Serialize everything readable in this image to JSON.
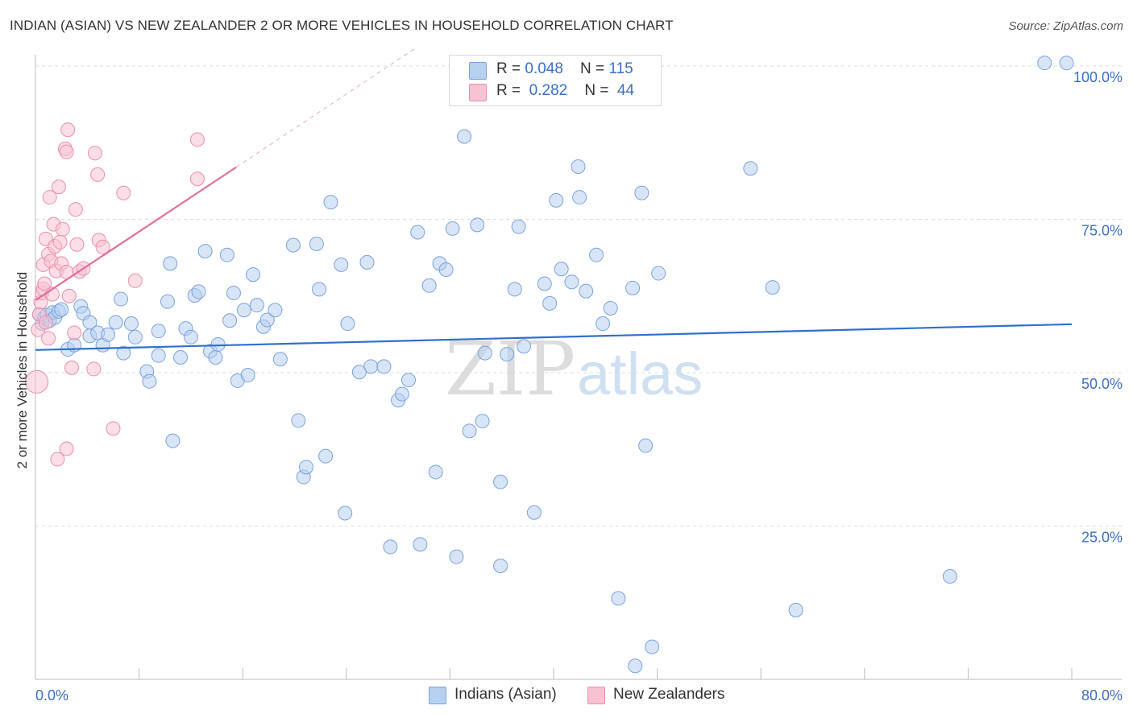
{
  "header": {
    "title": "INDIAN (ASIAN) VS NEW ZEALANDER 2 OR MORE VEHICLES IN HOUSEHOLD CORRELATION CHART",
    "source": "Source: ZipAtlas.com"
  },
  "legend": {
    "rows": [
      {
        "r_label": "R = ",
        "r_value": "0.048",
        "n_label": "N = ",
        "n_value": "115"
      },
      {
        "r_label": "R = ",
        "r_value": "0.282",
        "n_label": "N = ",
        "n_value": "44"
      }
    ]
  },
  "watermark": {
    "zip": "ZIP",
    "atlas": "atlas"
  },
  "colors": {
    "blue_fill": "#b8d0f0",
    "blue_stroke": "#7aa3dc",
    "blue_line": "#2f6fcf",
    "pink_fill": "#f7c3d2",
    "pink_stroke": "#e98fab",
    "pink_line": "#e0709a",
    "tick_text": "#3a6fc4",
    "grid": "#dddddd"
  },
  "chart_data": {
    "type": "scatter",
    "title": "INDIAN (ASIAN) VS NEW ZEALANDER 2 OR MORE VEHICLES IN HOUSEHOLD CORRELATION CHART",
    "xlabel": "",
    "ylabel": "2 or more Vehicles in Household",
    "xlim": [
      0,
      80
    ],
    "ylim": [
      0,
      100
    ],
    "x_tick_labels": [
      "0.0%",
      "80.0%"
    ],
    "y_ticks": [
      25,
      50,
      75,
      100
    ],
    "y_tick_labels": [
      "25.0%",
      "50.0%",
      "75.0%",
      "100.0%"
    ],
    "grid": true,
    "legend_position": "top-center",
    "series": [
      {
        "name": "Indians (Asian)",
        "color": "#b8d0f0",
        "r": 0.048,
        "n": 115,
        "trend": {
          "x": [
            0,
            80
          ],
          "y": [
            53.7,
            57.9
          ]
        },
        "points": [
          [
            0.3,
            59.5
          ],
          [
            0.5,
            58.0
          ],
          [
            0.7,
            59.0
          ],
          [
            0.9,
            59.4
          ],
          [
            1.1,
            58.5
          ],
          [
            1.3,
            59.8
          ],
          [
            1.5,
            59.0
          ],
          [
            1.8,
            60.0
          ],
          [
            2.0,
            60.3
          ],
          [
            2.5,
            53.8
          ],
          [
            3.0,
            54.5
          ],
          [
            3.5,
            60.8
          ],
          [
            3.7,
            59.7
          ],
          [
            4.2,
            58.2
          ],
          [
            4.2,
            56.0
          ],
          [
            4.8,
            56.5
          ],
          [
            5.2,
            54.5
          ],
          [
            5.6,
            56.2
          ],
          [
            6.2,
            58.2
          ],
          [
            6.6,
            62.0
          ],
          [
            6.8,
            53.2
          ],
          [
            7.4,
            58.0
          ],
          [
            7.7,
            55.8
          ],
          [
            8.6,
            50.2
          ],
          [
            8.8,
            48.6
          ],
          [
            9.5,
            56.8
          ],
          [
            9.5,
            52.8
          ],
          [
            10.2,
            61.6
          ],
          [
            10.4,
            67.8
          ],
          [
            10.6,
            38.9
          ],
          [
            11.2,
            52.5
          ],
          [
            11.6,
            57.2
          ],
          [
            12.0,
            55.8
          ],
          [
            12.3,
            62.6
          ],
          [
            12.6,
            63.2
          ],
          [
            13.1,
            69.8
          ],
          [
            13.5,
            53.5
          ],
          [
            13.9,
            52.5
          ],
          [
            14.1,
            54.6
          ],
          [
            14.8,
            69.2
          ],
          [
            15.0,
            58.5
          ],
          [
            15.3,
            63.0
          ],
          [
            15.6,
            48.7
          ],
          [
            16.1,
            60.2
          ],
          [
            16.4,
            49.6
          ],
          [
            16.8,
            66.0
          ],
          [
            17.1,
            61.0
          ],
          [
            17.6,
            57.5
          ],
          [
            17.9,
            58.6
          ],
          [
            18.5,
            60.2
          ],
          [
            18.9,
            52.2
          ],
          [
            19.9,
            70.8
          ],
          [
            20.3,
            42.2
          ],
          [
            20.7,
            33.0
          ],
          [
            20.9,
            34.6
          ],
          [
            21.7,
            71.0
          ],
          [
            21.9,
            63.6
          ],
          [
            22.4,
            36.4
          ],
          [
            22.8,
            77.8
          ],
          [
            23.6,
            67.6
          ],
          [
            23.9,
            27.1
          ],
          [
            24.1,
            58.0
          ],
          [
            25.0,
            50.1
          ],
          [
            25.6,
            68.0
          ],
          [
            25.9,
            51.0
          ],
          [
            26.9,
            51.0
          ],
          [
            27.4,
            21.6
          ],
          [
            28.0,
            45.5
          ],
          [
            28.3,
            46.5
          ],
          [
            28.8,
            48.8
          ],
          [
            29.5,
            72.9
          ],
          [
            29.7,
            22.0
          ],
          [
            30.4,
            64.2
          ],
          [
            30.9,
            33.8
          ],
          [
            31.2,
            67.8
          ],
          [
            31.7,
            66.8
          ],
          [
            32.2,
            73.5
          ],
          [
            32.5,
            20.0
          ],
          [
            33.1,
            88.5
          ],
          [
            33.5,
            40.5
          ],
          [
            34.1,
            74.1
          ],
          [
            34.5,
            42.1
          ],
          [
            34.7,
            53.2
          ],
          [
            35.9,
            32.2
          ],
          [
            35.9,
            18.5
          ],
          [
            36.4,
            53.0
          ],
          [
            37.0,
            63.6
          ],
          [
            37.3,
            73.8
          ],
          [
            37.7,
            54.3
          ],
          [
            38.5,
            27.2
          ],
          [
            39.3,
            64.5
          ],
          [
            39.7,
            61.3
          ],
          [
            40.2,
            78.1
          ],
          [
            40.6,
            66.9
          ],
          [
            41.4,
            64.8
          ],
          [
            41.9,
            83.6
          ],
          [
            42.0,
            78.6
          ],
          [
            42.5,
            63.3
          ],
          [
            43.3,
            69.2
          ],
          [
            43.8,
            58.0
          ],
          [
            44.4,
            60.5
          ],
          [
            45.0,
            13.2
          ],
          [
            46.1,
            63.8
          ],
          [
            46.3,
            2.2
          ],
          [
            46.8,
            79.3
          ],
          [
            47.1,
            38.1
          ],
          [
            47.6,
            5.3
          ],
          [
            48.1,
            66.2
          ],
          [
            55.2,
            83.3
          ],
          [
            56.9,
            63.9
          ],
          [
            58.7,
            11.3
          ],
          [
            70.6,
            16.8
          ],
          [
            77.9,
            100.5
          ],
          [
            79.6,
            100.5
          ]
        ]
      },
      {
        "name": "New Zealanders",
        "color": "#f7c3d2",
        "r": 0.282,
        "n": 44,
        "trend": {
          "x": [
            0,
            15.5
          ],
          "y": [
            61.8,
            83.5
          ]
        },
        "trend_dashed": {
          "x": [
            15.5,
            29.4
          ],
          "y": [
            83.5,
            103.0
          ]
        },
        "points": [
          [
            0.1,
            48.5
          ],
          [
            0.2,
            57.0
          ],
          [
            0.3,
            59.5
          ],
          [
            0.4,
            61.5
          ],
          [
            0.5,
            63.0
          ],
          [
            0.6,
            63.7
          ],
          [
            0.6,
            67.6
          ],
          [
            0.7,
            64.5
          ],
          [
            0.8,
            71.8
          ],
          [
            0.8,
            58.2
          ],
          [
            1.0,
            55.6
          ],
          [
            1.0,
            69.3
          ],
          [
            1.1,
            78.6
          ],
          [
            1.2,
            68.2
          ],
          [
            1.3,
            62.8
          ],
          [
            1.4,
            74.2
          ],
          [
            1.5,
            70.6
          ],
          [
            1.6,
            66.6
          ],
          [
            1.7,
            35.9
          ],
          [
            1.8,
            80.3
          ],
          [
            1.9,
            71.3
          ],
          [
            2.0,
            67.8
          ],
          [
            2.1,
            73.4
          ],
          [
            2.3,
            86.5
          ],
          [
            2.4,
            86.0
          ],
          [
            2.4,
            66.4
          ],
          [
            2.4,
            37.6
          ],
          [
            2.5,
            89.6
          ],
          [
            2.6,
            62.5
          ],
          [
            2.8,
            50.8
          ],
          [
            3.0,
            56.5
          ],
          [
            3.1,
            76.6
          ],
          [
            3.2,
            70.9
          ],
          [
            3.4,
            66.5
          ],
          [
            3.7,
            67.0
          ],
          [
            4.5,
            50.6
          ],
          [
            4.6,
            85.8
          ],
          [
            4.8,
            82.3
          ],
          [
            4.9,
            71.6
          ],
          [
            5.2,
            70.5
          ],
          [
            6.0,
            40.9
          ],
          [
            6.8,
            79.3
          ],
          [
            7.7,
            65.0
          ],
          [
            12.5,
            88.0
          ],
          [
            12.5,
            81.6
          ]
        ]
      }
    ]
  },
  "bottom_legend": {
    "items": [
      {
        "label": "Indians (Asian)"
      },
      {
        "label": "New Zealanders"
      }
    ]
  }
}
